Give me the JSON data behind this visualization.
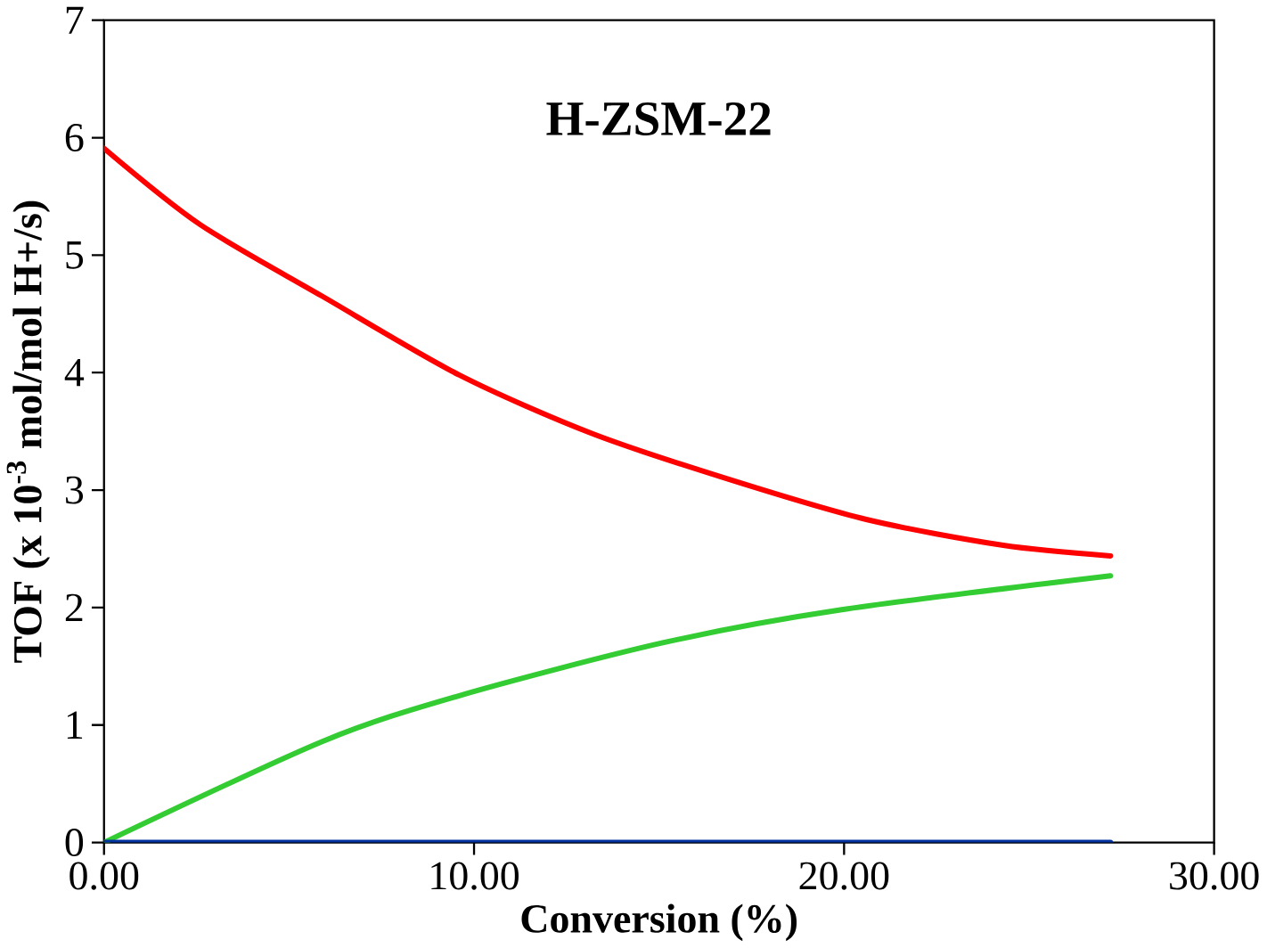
{
  "chart_data": {
    "type": "line",
    "xlabel": "Conversion (%)",
    "ylabel": "TOF (x 10$^{-3}$ mol/mol H+/s)",
    "annotations": [
      "H-ZSM-22"
    ],
    "xlim": [
      0,
      30
    ],
    "ylim": [
      0,
      7
    ],
    "xticks": [
      {
        "value": 0,
        "label": "0.00"
      },
      {
        "value": 10,
        "label": "10.00"
      },
      {
        "value": 20,
        "label": "20.00"
      },
      {
        "value": 30,
        "label": "30.00"
      }
    ],
    "yticks": [
      0,
      1,
      2,
      3,
      4,
      5,
      6,
      7
    ],
    "grid": false,
    "marker": "none",
    "line_style": "solid",
    "series": [
      {
        "color": "#ff0000",
        "x": [
          0,
          2.6,
          5.9,
          9.6,
          13.2,
          16.9,
          20.6,
          24.3,
          27.2
        ],
        "values": [
          5.91,
          5.26,
          4.65,
          3.98,
          3.48,
          3.09,
          2.75,
          2.53,
          2.44
        ]
      },
      {
        "color": "#33cc33",
        "x": [
          0,
          5.9,
          9.6,
          15.1,
          19.9,
          27.2
        ],
        "values": [
          0,
          0.86,
          1.25,
          1.7,
          1.98,
          2.27
        ]
      },
      {
        "color": "#0033a0",
        "x": [
          0,
          27.2
        ],
        "values": [
          0,
          0
        ]
      }
    ]
  }
}
